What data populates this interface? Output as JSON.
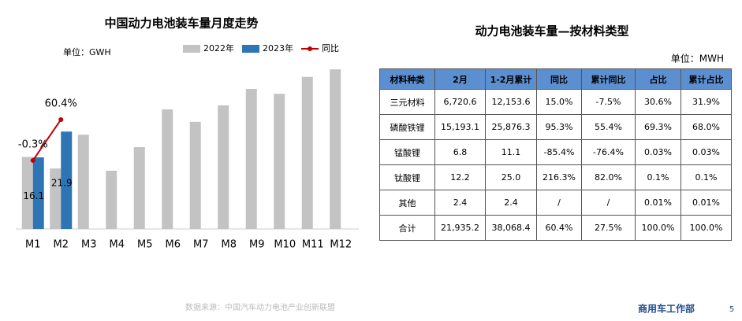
{
  "chart_data": {
    "type": "bar",
    "title": "中国动力电池装车量月度走势",
    "unit": "单位：GWH",
    "categories": [
      "M1",
      "M2",
      "M3",
      "M4",
      "M5",
      "M6",
      "M7",
      "M8",
      "M9",
      "M10",
      "M11",
      "M12"
    ],
    "ylim": [
      0,
      40
    ],
    "y2lim": [
      -102,
      162
    ],
    "series": [
      {
        "name": "2022年",
        "color": "#c3c3c3",
        "values": [
          16.2,
          13.6,
          21.2,
          13.1,
          18.4,
          26.9,
          24.1,
          27.8,
          31.5,
          30.4,
          34.2,
          35.9
        ]
      },
      {
        "name": "2023年",
        "color": "#2e75b6",
        "values": [
          16.1,
          21.9,
          null,
          null,
          null,
          null,
          null,
          null,
          null,
          null,
          null,
          null
        ]
      },
      {
        "name": "同比",
        "color": "#c00000",
        "type": "line",
        "axis": "y2",
        "values": [
          -0.3,
          60.4,
          null,
          null,
          null,
          null,
          null,
          null,
          null,
          null,
          null,
          null
        ],
        "value_labels": [
          "-0.3%",
          "60.4%",
          null,
          null,
          null,
          null,
          null,
          null,
          null,
          null,
          null,
          null
        ]
      }
    ]
  },
  "table": {
    "title": "动力电池装车量—按材料类型",
    "unit": "单位：MWH",
    "header": [
      "材料种类",
      "2月",
      "1-2月累计",
      "同比",
      "累计同比",
      "占比",
      "累计占比"
    ],
    "rows": [
      [
        "三元材料",
        "6,720.6",
        "12,153.6",
        "15.0%",
        "-7.5%",
        "30.6%",
        "31.9%"
      ],
      [
        "磷酸铁锂",
        "15,193.1",
        "25,876.3",
        "95.3%",
        "55.4%",
        "69.3%",
        "68.0%"
      ],
      [
        "锰酸锂",
        "6.8",
        "11.1",
        "-85.4%",
        "-76.4%",
        "0.03%",
        "0.03%"
      ],
      [
        "钛酸锂",
        "12.2",
        "25.0",
        "216.3%",
        "82.0%",
        "0.1%",
        "0.1%"
      ],
      [
        "其他",
        "2.4",
        "2.4",
        "/",
        "/",
        "0.01%",
        "0.01%"
      ],
      [
        "合计",
        "21,935.2",
        "38,068.4",
        "60.4%",
        "27.5%",
        "100.0%",
        "100.0%"
      ]
    ]
  },
  "footer": {
    "source": "数据来源：中国汽车动力电池产业创新联盟",
    "department": "商用车工作部",
    "page": "5"
  }
}
